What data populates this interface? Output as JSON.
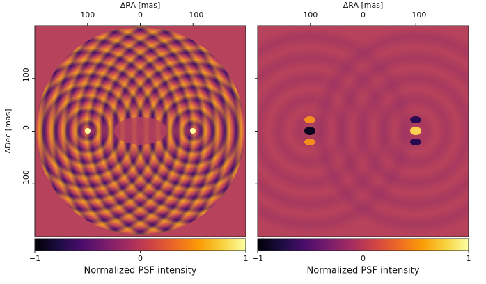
{
  "chart_data": [
    {
      "type": "image",
      "xlabel": "ΔRA [mas]",
      "ylabel": "ΔDec [mas]",
      "xlim": [
        200,
        -200
      ],
      "ylim": [
        -200,
        200
      ],
      "xticks": [
        100,
        0,
        {
          "value": -100,
          "label": "−100"
        }
      ],
      "yticks": [
        100,
        0,
        {
          "value": -100,
          "label": "−100"
        }
      ],
      "ytick_labels": true,
      "colormap": "inferno",
      "clim": [
        -1,
        1
      ],
      "colorbar_ticks": [
        {
          "value": -1,
          "label": "−1"
        },
        0,
        1
      ],
      "colorbar_label": "Normalized PSF intensity"
    },
    {
      "type": "image",
      "xlabel": "ΔRA [mas]",
      "xlim": [
        200,
        -200
      ],
      "ylim": [
        -200,
        200
      ],
      "xticks": [
        100,
        0,
        {
          "value": -100,
          "label": "−100"
        }
      ],
      "yticks": [
        100,
        0,
        -100
      ],
      "ytick_labels": false,
      "colormap": "inferno",
      "clim": [
        -1,
        1
      ],
      "colorbar_ticks": [
        {
          "value": -1,
          "label": "−1"
        },
        0,
        1
      ],
      "colorbar_label": "Normalized PSF intensity"
    }
  ]
}
